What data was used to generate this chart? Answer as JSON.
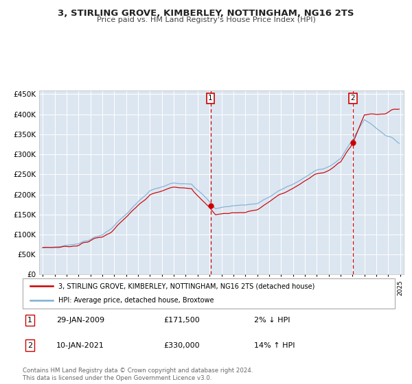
{
  "title": "3, STIRLING GROVE, KIMBERLEY, NOTTINGHAM, NG16 2TS",
  "subtitle": "Price paid vs. HM Land Registry's House Price Index (HPI)",
  "ylim": [
    0,
    460000
  ],
  "yticks": [
    0,
    50000,
    100000,
    150000,
    200000,
    250000,
    300000,
    350000,
    400000,
    450000
  ],
  "year_start": 1995,
  "year_end": 2025,
  "hpi_color": "#7bafd4",
  "price_color": "#cc0000",
  "bg_color": "#dce6f1",
  "sale1_price": 171500,
  "sale1_year": 2009.08,
  "sale2_price": 330000,
  "sale2_year": 2021.03,
  "sale1_date": "29-JAN-2009",
  "sale1_hpi_diff": "2% ↓ HPI",
  "sale2_date": "10-JAN-2021",
  "sale2_hpi_diff": "14% ↑ HPI",
  "legend_line1": "3, STIRLING GROVE, KIMBERLEY, NOTTINGHAM, NG16 2TS (detached house)",
  "legend_line2": "HPI: Average price, detached house, Broxtowe",
  "footnote": "Contains HM Land Registry data © Crown copyright and database right 2024.\nThis data is licensed under the Open Government Licence v3.0."
}
